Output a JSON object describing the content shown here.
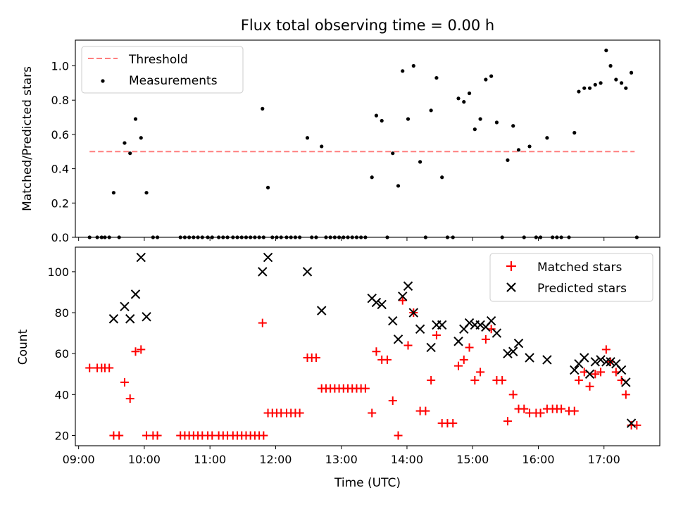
{
  "chart_data": [
    {
      "type": "scatter",
      "title": "Flux total observing time = 0.00 h",
      "xlabel": "",
      "ylabel": "Matched/Predicted stars",
      "xlim": [
        "08:57",
        "17:51"
      ],
      "ylim": [
        0,
        1.15
      ],
      "yticks": [
        "0.0",
        "0.2",
        "0.4",
        "0.6",
        "0.8",
        "1.0"
      ],
      "legend_position": "upper-left",
      "threshold": {
        "name": "Threshold",
        "value": 0.5,
        "x_range": [
          "09:10",
          "17:28"
        ],
        "color": "#ff7f7f",
        "style": "dashed"
      },
      "series": [
        {
          "name": "Measurements",
          "color": "#000000",
          "marker": "dot",
          "points": [
            [
              "09:10",
              0.0
            ],
            [
              "09:17",
              0.0
            ],
            [
              "09:21",
              0.0
            ],
            [
              "09:24",
              0.0
            ],
            [
              "09:28",
              0.0
            ],
            [
              "09:32",
              0.26
            ],
            [
              "09:37",
              0.0
            ],
            [
              "09:42",
              0.55
            ],
            [
              "09:47",
              0.49
            ],
            [
              "09:52",
              0.69
            ],
            [
              "09:57",
              0.58
            ],
            [
              "10:02",
              0.26
            ],
            [
              "10:08",
              0.0
            ],
            [
              "10:12",
              0.0
            ],
            [
              "10:33",
              0.0
            ],
            [
              "10:37",
              0.0
            ],
            [
              "10:41",
              0.0
            ],
            [
              "10:45",
              0.0
            ],
            [
              "10:49",
              0.0
            ],
            [
              "10:53",
              0.0
            ],
            [
              "10:58",
              0.0
            ],
            [
              "11:02",
              0.0
            ],
            [
              "11:08",
              0.0
            ],
            [
              "11:12",
              0.0
            ],
            [
              "11:16",
              0.0
            ],
            [
              "11:21",
              0.0
            ],
            [
              "11:25",
              0.0
            ],
            [
              "11:29",
              0.0
            ],
            [
              "11:33",
              0.0
            ],
            [
              "11:37",
              0.0
            ],
            [
              "11:41",
              0.0
            ],
            [
              "11:45",
              0.0
            ],
            [
              "11:49",
              0.0
            ],
            [
              "11:48",
              0.75
            ],
            [
              "11:53",
              0.29
            ],
            [
              "11:57",
              0.0
            ],
            [
              "12:01",
              0.0
            ],
            [
              "12:05",
              0.0
            ],
            [
              "12:10",
              0.0
            ],
            [
              "12:14",
              0.0
            ],
            [
              "12:18",
              0.0
            ],
            [
              "12:22",
              0.0
            ],
            [
              "12:29",
              0.58
            ],
            [
              "12:33",
              0.0
            ],
            [
              "12:37",
              0.0
            ],
            [
              "12:42",
              0.53
            ],
            [
              "12:46",
              0.0
            ],
            [
              "12:50",
              0.0
            ],
            [
              "12:54",
              0.0
            ],
            [
              "12:58",
              0.0
            ],
            [
              "13:02",
              0.0
            ],
            [
              "13:06",
              0.0
            ],
            [
              "13:10",
              0.0
            ],
            [
              "13:14",
              0.0
            ],
            [
              "13:18",
              0.0
            ],
            [
              "13:22",
              0.0
            ],
            [
              "13:28",
              0.35
            ],
            [
              "13:32",
              0.71
            ],
            [
              "13:37",
              0.68
            ],
            [
              "13:42",
              0.0
            ],
            [
              "13:47",
              0.49
            ],
            [
              "13:52",
              0.3
            ],
            [
              "13:56",
              0.97
            ],
            [
              "14:01",
              0.69
            ],
            [
              "14:06",
              1.0
            ],
            [
              "14:12",
              0.44
            ],
            [
              "14:17",
              0.0
            ],
            [
              "14:22",
              0.74
            ],
            [
              "14:27",
              0.93
            ],
            [
              "14:32",
              0.35
            ],
            [
              "14:37",
              0.0
            ],
            [
              "14:42",
              0.0
            ],
            [
              "14:47",
              0.81
            ],
            [
              "14:52",
              0.79
            ],
            [
              "14:57",
              0.84
            ],
            [
              "15:02",
              0.63
            ],
            [
              "15:07",
              0.69
            ],
            [
              "15:12",
              0.92
            ],
            [
              "15:17",
              0.94
            ],
            [
              "15:22",
              0.67
            ],
            [
              "15:27",
              0.0
            ],
            [
              "15:32",
              0.45
            ],
            [
              "15:37",
              0.65
            ],
            [
              "15:42",
              0.51
            ],
            [
              "15:47",
              0.0
            ],
            [
              "15:52",
              0.53
            ],
            [
              "15:58",
              0.0
            ],
            [
              "16:02",
              0.0
            ],
            [
              "16:08",
              0.58
            ],
            [
              "16:13",
              0.0
            ],
            [
              "16:17",
              0.0
            ],
            [
              "16:21",
              0.0
            ],
            [
              "16:28",
              0.0
            ],
            [
              "16:33",
              0.61
            ],
            [
              "16:37",
              0.85
            ],
            [
              "16:42",
              0.87
            ],
            [
              "16:47",
              0.87
            ],
            [
              "16:52",
              0.89
            ],
            [
              "16:57",
              0.9
            ],
            [
              "17:02",
              1.09
            ],
            [
              "17:06",
              1.0
            ],
            [
              "17:11",
              0.92
            ],
            [
              "17:16",
              0.9
            ],
            [
              "17:20",
              0.87
            ],
            [
              "17:25",
              0.96
            ],
            [
              "17:30",
              0.0
            ]
          ]
        }
      ]
    },
    {
      "type": "scatter",
      "xlabel": "Time (UTC)",
      "ylabel": "Count",
      "xlim": [
        "08:57",
        "17:51"
      ],
      "ylim": [
        15,
        112
      ],
      "xticks": [
        "09:00",
        "10:00",
        "11:00",
        "12:00",
        "13:00",
        "14:00",
        "15:00",
        "16:00",
        "17:00"
      ],
      "yticks": [
        "20",
        "40",
        "60",
        "80",
        "100"
      ],
      "legend_position": "upper-right",
      "series": [
        {
          "name": "Matched stars",
          "color": "#ff0000",
          "marker": "plus",
          "points": [
            [
              "09:10",
              53
            ],
            [
              "09:17",
              53
            ],
            [
              "09:21",
              53
            ],
            [
              "09:24",
              53
            ],
            [
              "09:28",
              53
            ],
            [
              "09:32",
              20
            ],
            [
              "09:37",
              20
            ],
            [
              "09:42",
              46
            ],
            [
              "09:47",
              38
            ],
            [
              "09:52",
              61
            ],
            [
              "09:57",
              62
            ],
            [
              "10:02",
              20
            ],
            [
              "10:08",
              20
            ],
            [
              "10:12",
              20
            ],
            [
              "10:33",
              20
            ],
            [
              "10:37",
              20
            ],
            [
              "10:41",
              20
            ],
            [
              "10:45",
              20
            ],
            [
              "10:49",
              20
            ],
            [
              "10:53",
              20
            ],
            [
              "10:58",
              20
            ],
            [
              "11:02",
              20
            ],
            [
              "11:08",
              20
            ],
            [
              "11:12",
              20
            ],
            [
              "11:16",
              20
            ],
            [
              "11:21",
              20
            ],
            [
              "11:25",
              20
            ],
            [
              "11:29",
              20
            ],
            [
              "11:33",
              20
            ],
            [
              "11:37",
              20
            ],
            [
              "11:41",
              20
            ],
            [
              "11:45",
              20
            ],
            [
              "11:49",
              20
            ],
            [
              "11:48",
              75
            ],
            [
              "11:53",
              31
            ],
            [
              "11:57",
              31
            ],
            [
              "12:01",
              31
            ],
            [
              "12:05",
              31
            ],
            [
              "12:10",
              31
            ],
            [
              "12:14",
              31
            ],
            [
              "12:18",
              31
            ],
            [
              "12:22",
              31
            ],
            [
              "12:29",
              58
            ],
            [
              "12:33",
              58
            ],
            [
              "12:37",
              58
            ],
            [
              "12:42",
              43
            ],
            [
              "12:46",
              43
            ],
            [
              "12:50",
              43
            ],
            [
              "12:54",
              43
            ],
            [
              "12:58",
              43
            ],
            [
              "13:02",
              43
            ],
            [
              "13:06",
              43
            ],
            [
              "13:10",
              43
            ],
            [
              "13:14",
              43
            ],
            [
              "13:18",
              43
            ],
            [
              "13:22",
              43
            ],
            [
              "13:28",
              31
            ],
            [
              "13:32",
              61
            ],
            [
              "13:37",
              57
            ],
            [
              "13:42",
              57
            ],
            [
              "13:47",
              37
            ],
            [
              "13:52",
              20
            ],
            [
              "13:56",
              86
            ],
            [
              "14:01",
              64
            ],
            [
              "14:06",
              80
            ],
            [
              "14:12",
              32
            ],
            [
              "14:17",
              32
            ],
            [
              "14:22",
              47
            ],
            [
              "14:27",
              69
            ],
            [
              "14:32",
              26
            ],
            [
              "14:37",
              26
            ],
            [
              "14:42",
              26
            ],
            [
              "14:47",
              54
            ],
            [
              "14:52",
              57
            ],
            [
              "14:57",
              63
            ],
            [
              "15:02",
              47
            ],
            [
              "15:07",
              51
            ],
            [
              "15:12",
              67
            ],
            [
              "15:17",
              72
            ],
            [
              "15:22",
              47
            ],
            [
              "15:27",
              47
            ],
            [
              "15:32",
              27
            ],
            [
              "15:37",
              40
            ],
            [
              "15:42",
              33
            ],
            [
              "15:47",
              33
            ],
            [
              "15:52",
              31
            ],
            [
              "15:58",
              31
            ],
            [
              "16:02",
              31
            ],
            [
              "16:08",
              33
            ],
            [
              "16:13",
              33
            ],
            [
              "16:17",
              33
            ],
            [
              "16:21",
              33
            ],
            [
              "16:28",
              32
            ],
            [
              "16:33",
              32
            ],
            [
              "16:37",
              47
            ],
            [
              "16:42",
              51
            ],
            [
              "16:47",
              44
            ],
            [
              "16:52",
              50
            ],
            [
              "16:57",
              51
            ],
            [
              "17:02",
              62
            ],
            [
              "17:06",
              56
            ],
            [
              "17:11",
              51
            ],
            [
              "17:16",
              47
            ],
            [
              "17:20",
              40
            ],
            [
              "17:25",
              25
            ],
            [
              "17:30",
              25
            ]
          ]
        },
        {
          "name": "Predicted stars",
          "color": "#000000",
          "marker": "x",
          "points": [
            [
              "09:32",
              77
            ],
            [
              "09:42",
              83
            ],
            [
              "09:47",
              77
            ],
            [
              "09:52",
              89
            ],
            [
              "09:57",
              107
            ],
            [
              "10:02",
              78
            ],
            [
              "11:48",
              100
            ],
            [
              "11:53",
              107
            ],
            [
              "12:29",
              100
            ],
            [
              "12:42",
              81
            ],
            [
              "13:28",
              87
            ],
            [
              "13:32",
              85
            ],
            [
              "13:37",
              84
            ],
            [
              "13:47",
              76
            ],
            [
              "13:52",
              67
            ],
            [
              "13:56",
              88
            ],
            [
              "14:01",
              93
            ],
            [
              "14:06",
              80
            ],
            [
              "14:12",
              72
            ],
            [
              "14:22",
              63
            ],
            [
              "14:27",
              74
            ],
            [
              "14:32",
              74
            ],
            [
              "14:47",
              66
            ],
            [
              "14:52",
              72
            ],
            [
              "14:57",
              75
            ],
            [
              "15:02",
              74
            ],
            [
              "15:07",
              74
            ],
            [
              "15:12",
              73
            ],
            [
              "15:17",
              76
            ],
            [
              "15:22",
              70
            ],
            [
              "15:32",
              60
            ],
            [
              "15:37",
              61
            ],
            [
              "15:42",
              65
            ],
            [
              "15:52",
              58
            ],
            [
              "16:08",
              57
            ],
            [
              "16:33",
              52
            ],
            [
              "16:37",
              55
            ],
            [
              "16:42",
              58
            ],
            [
              "16:47",
              50
            ],
            [
              "16:52",
              56
            ],
            [
              "16:57",
              57
            ],
            [
              "17:02",
              56
            ],
            [
              "17:06",
              56
            ],
            [
              "17:11",
              55
            ],
            [
              "17:16",
              52
            ],
            [
              "17:20",
              46
            ],
            [
              "17:25",
              26
            ]
          ]
        }
      ]
    }
  ]
}
